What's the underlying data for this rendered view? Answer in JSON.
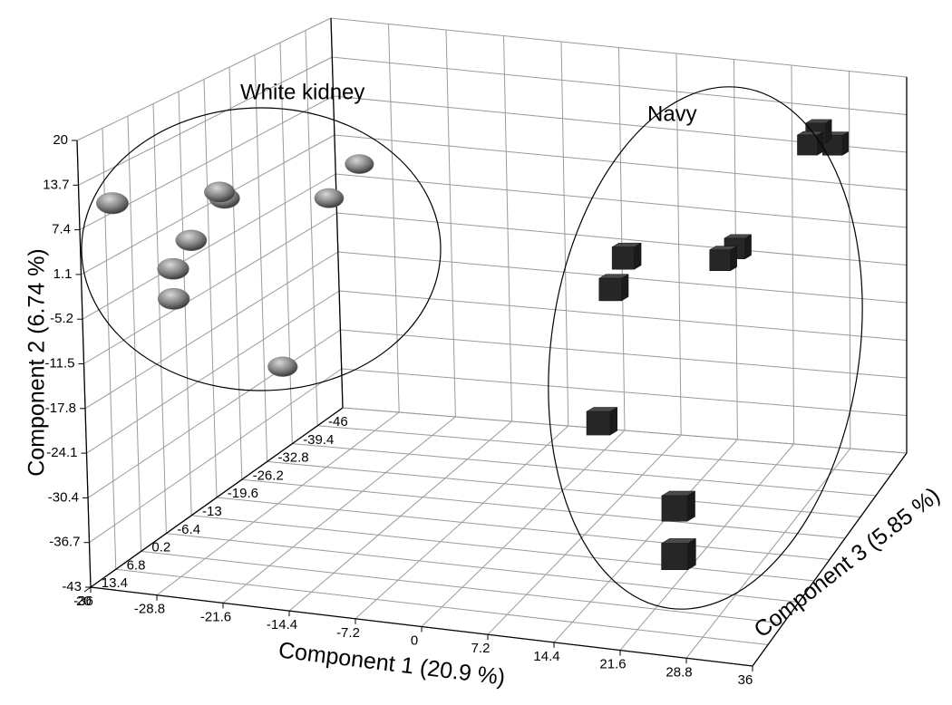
{
  "chart_data": {
    "type": "scatter3d",
    "x_label": "Component 1 (20.9 %)",
    "y_label": "Component 2 (6.74 %)",
    "z_label": "Component 3 (5.85 %)",
    "xlim": [
      -36,
      36
    ],
    "ylim": [
      -43,
      20
    ],
    "zlim": [
      -46,
      20
    ],
    "xticks": [
      -36,
      -28.8,
      -21.6,
      -14.4,
      -7.2,
      0,
      7.2,
      14.4,
      21.6,
      28.8,
      36
    ],
    "yticks": [
      -43,
      -36.7,
      -30.4,
      -24.1,
      -17.8,
      -11.5,
      -5.2,
      1.1,
      7.4,
      13.7,
      20
    ],
    "zticks": [
      -46,
      -39.4,
      -32.8,
      -26.2,
      -19.6,
      -13,
      -6.4,
      0.2,
      6.8,
      13.4,
      20
    ],
    "grid": true,
    "series": [
      {
        "name": "White kidney",
        "color": "#808080",
        "marker": "sphere",
        "x": [
          -33.8,
          -26.2,
          -26,
          -15.8,
          -18,
          -28.1,
          -28.8,
          -28.3,
          -22.3
        ],
        "y": [
          10.6,
          10.6,
          9.5,
          12.4,
          8.0,
          4.3,
          1.1,
          -2.7,
          -16.5
        ],
        "z": [
          16.7,
          6.8,
          6.0,
          -6.4,
          -3.1,
          10.1,
          13.4,
          14.7,
          0.2
        ]
      },
      {
        "name": "Navy",
        "color": "#262626",
        "marker": "cube",
        "x": [
          26.6,
          26,
          28.5,
          9.7,
          8.7,
          18.7,
          17.5,
          10,
          23.7,
          25.6
        ],
        "y": [
          12,
          10.5,
          10,
          -2.7,
          -7.1,
          -5.2,
          -6.5,
          -24.1,
          -27.8,
          -31.7
        ],
        "z": [
          -39.4,
          -38,
          -40,
          -19.6,
          -18,
          -32.8,
          -31,
          -9.7,
          6.8,
          13.4
        ]
      }
    ]
  }
}
